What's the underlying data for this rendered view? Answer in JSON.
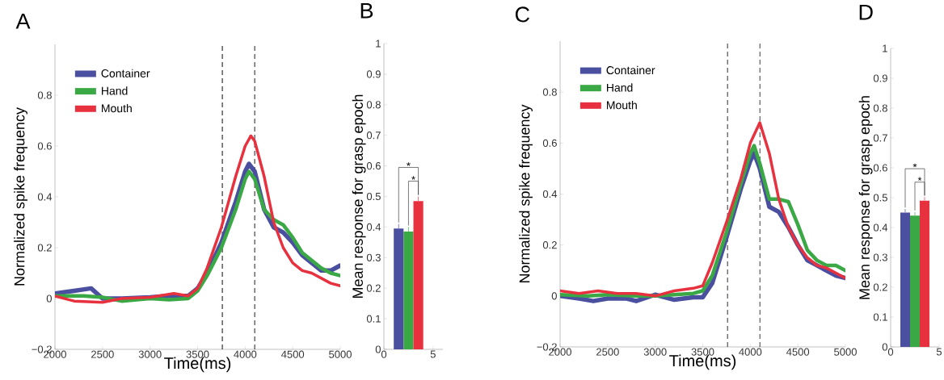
{
  "chart_data": [
    {
      "type": "line",
      "title": "A",
      "xlabel": "Time(ms)",
      "ylabel": "Normalized spike frequency",
      "legend": "top left",
      "xlim": [
        2000,
        5000
      ],
      "xticks": [
        2000,
        2500,
        3000,
        3500,
        4000,
        4500,
        5000
      ],
      "ylim": [
        -0.2,
        1.0
      ],
      "yticks": [
        {
          "value": -0.2,
          "label": "−0.2"
        },
        0,
        0.2,
        0.4,
        0.6,
        0.8
      ],
      "ref_lines": [
        {
          "axis": "x",
          "value": 3760,
          "color": "#333333",
          "line_style": "dashed"
        },
        {
          "axis": "x",
          "value": 4100,
          "color": "#333333",
          "line_style": "dashed"
        }
      ],
      "series": [
        {
          "name": "Container",
          "color": "#4b4fa0",
          "x": [
            2000,
            2200,
            2380,
            2500,
            2700,
            3000,
            3200,
            3400,
            3500,
            3600,
            3750,
            3900,
            4000,
            4040,
            4100,
            4200,
            4300,
            4400,
            4500,
            4600,
            4700,
            4800,
            4900,
            5000
          ],
          "values": [
            0.02,
            0.03,
            0.04,
            0.0,
            0.0,
            0.005,
            0.01,
            0.01,
            0.04,
            0.1,
            0.22,
            0.38,
            0.5,
            0.53,
            0.5,
            0.35,
            0.28,
            0.26,
            0.22,
            0.17,
            0.14,
            0.11,
            0.11,
            0.13
          ]
        },
        {
          "name": "Hand",
          "color": "#3aa845",
          "x": [
            2000,
            2300,
            2500,
            2700,
            3000,
            3200,
            3400,
            3500,
            3600,
            3750,
            3900,
            4000,
            4040,
            4100,
            4200,
            4300,
            4400,
            4500,
            4600,
            4700,
            4800,
            4900,
            5000
          ],
          "values": [
            0.01,
            0.01,
            0.005,
            -0.01,
            0.0,
            -0.005,
            0.0,
            0.03,
            0.09,
            0.2,
            0.35,
            0.47,
            0.5,
            0.47,
            0.35,
            0.31,
            0.29,
            0.24,
            0.18,
            0.15,
            0.12,
            0.1,
            0.09
          ]
        },
        {
          "name": "Mouth",
          "color": "#e8313f",
          "x": [
            2000,
            2200,
            2500,
            2700,
            3000,
            3250,
            3400,
            3500,
            3600,
            3750,
            3900,
            4000,
            4060,
            4100,
            4200,
            4300,
            4400,
            4500,
            4600,
            4700,
            4800,
            4900,
            5000
          ],
          "values": [
            0.01,
            -0.01,
            -0.015,
            0.0,
            0.005,
            0.02,
            0.01,
            0.04,
            0.12,
            0.28,
            0.48,
            0.6,
            0.64,
            0.62,
            0.48,
            0.3,
            0.2,
            0.14,
            0.11,
            0.1,
            0.08,
            0.06,
            0.05
          ]
        }
      ]
    },
    {
      "type": "bar",
      "title": "B",
      "ylabel": "Mean response for grasp epoch",
      "x": [
        1.5,
        2.5,
        3.5
      ],
      "values": [
        0.395,
        0.385,
        0.485
      ],
      "errors": [
        0.015,
        0.015,
        0.015
      ],
      "colors": [
        "#4b4fa0",
        "#3aa845",
        "#e8313f"
      ],
      "xlim": [
        0,
        6
      ],
      "xticks": [
        0,
        5
      ],
      "ylim": [
        0,
        1
      ],
      "yticks": [
        0,
        0.1,
        0.2,
        0.3,
        0.4,
        0.5,
        0.6,
        0.7,
        0.8,
        0.9,
        1
      ],
      "annotations": [
        "*",
        "*"
      ]
    },
    {
      "type": "line",
      "title": "C",
      "xlabel": "Time(ms)",
      "ylabel": "Normalized spike frequency",
      "legend": "top left",
      "xlim": [
        2000,
        5000
      ],
      "xticks": [
        2000,
        2500,
        3000,
        3500,
        4000,
        4500,
        5000
      ],
      "ylim": [
        -0.2,
        1.0
      ],
      "yticks": [
        {
          "value": -0.2,
          "label": "−0.2"
        },
        0,
        0.2,
        0.4,
        0.6,
        0.8
      ],
      "ref_lines": [
        {
          "axis": "x",
          "value": 3760,
          "color": "#333333",
          "line_style": "dashed"
        },
        {
          "axis": "x",
          "value": 4100,
          "color": "#333333",
          "line_style": "dashed"
        }
      ],
      "series": [
        {
          "name": "Container",
          "color": "#4b4fa0",
          "x": [
            2000,
            2200,
            2350,
            2500,
            2700,
            2800,
            3000,
            3200,
            3400,
            3500,
            3600,
            3750,
            3900,
            4000,
            4040,
            4100,
            4200,
            4300,
            4400,
            4500,
            4600,
            4700,
            4800,
            4900,
            5000
          ],
          "values": [
            0.0,
            -0.01,
            -0.02,
            -0.01,
            -0.01,
            -0.02,
            0.005,
            -0.015,
            -0.005,
            -0.005,
            0.05,
            0.23,
            0.42,
            0.53,
            0.56,
            0.5,
            0.35,
            0.33,
            0.27,
            0.2,
            0.14,
            0.12,
            0.1,
            0.08,
            0.07
          ]
        },
        {
          "name": "Hand",
          "color": "#3aa845",
          "x": [
            2000,
            2300,
            2500,
            2800,
            3000,
            3200,
            3400,
            3500,
            3600,
            3750,
            3900,
            4000,
            4040,
            4100,
            4200,
            4300,
            4400,
            4500,
            4600,
            4700,
            4800,
            4900,
            5000
          ],
          "values": [
            0.005,
            0.0,
            0.005,
            0.0,
            0.0,
            0.005,
            0.01,
            0.02,
            0.08,
            0.25,
            0.44,
            0.56,
            0.59,
            0.52,
            0.38,
            0.38,
            0.37,
            0.28,
            0.18,
            0.14,
            0.12,
            0.12,
            0.1
          ]
        },
        {
          "name": "Mouth",
          "color": "#e8313f",
          "x": [
            2000,
            2200,
            2400,
            2600,
            2800,
            3000,
            3200,
            3400,
            3500,
            3600,
            3750,
            3900,
            4000,
            4100,
            4200,
            4300,
            4400,
            4500,
            4600,
            4700,
            4800,
            4900,
            5000
          ],
          "values": [
            0.02,
            0.01,
            0.02,
            0.01,
            0.01,
            0.0,
            0.02,
            0.03,
            0.04,
            0.13,
            0.29,
            0.46,
            0.6,
            0.68,
            0.56,
            0.38,
            0.27,
            0.2,
            0.15,
            0.12,
            0.11,
            0.09,
            0.07
          ]
        }
      ]
    },
    {
      "type": "bar",
      "title": "D",
      "ylabel": "Mean response for grasp epoch",
      "x": [
        1.5,
        2.5,
        3.5
      ],
      "values": [
        0.45,
        0.44,
        0.49
      ],
      "errors": [
        0.012,
        0.012,
        0.012
      ],
      "colors": [
        "#4b4fa0",
        "#3aa845",
        "#e8313f"
      ],
      "xlim": [
        0,
        5
      ],
      "xticks": [
        0,
        5
      ],
      "ylim": [
        0,
        1
      ],
      "yticks": [
        0,
        0.1,
        0.2,
        0.3,
        0.4,
        0.5,
        0.6,
        0.7,
        0.8,
        0.9,
        1
      ],
      "annotations": [
        "*",
        "*"
      ]
    }
  ]
}
